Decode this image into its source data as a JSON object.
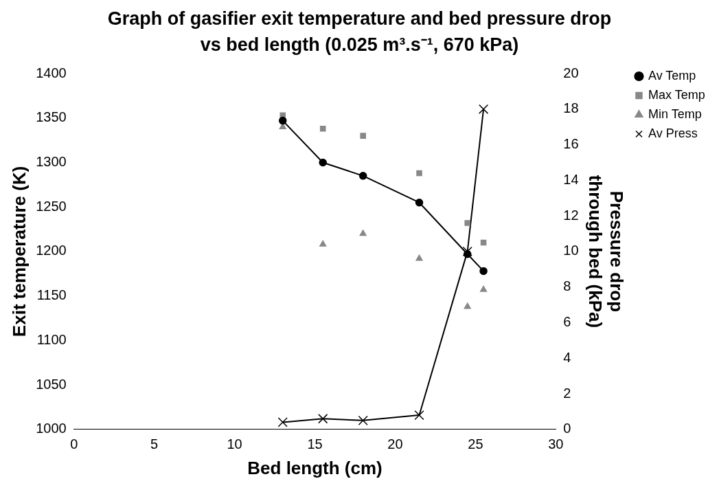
{
  "chart_data": {
    "type": "line",
    "title": "Graph of gasifier exit temperature and bed pressure drop vs bed length (0.025 m³.s⁻¹, 670 kPa)",
    "xlabel": "Bed length (cm)",
    "ylabel": "Exit temperature (K)",
    "y2label": "Pressure drop through bed (kPa)",
    "x": [
      13,
      15.5,
      18,
      21.5,
      24.5,
      25.5
    ],
    "series": [
      {
        "name": "Av Temp",
        "color": "#000000",
        "marker": "circle",
        "values": [
          1347,
          1300,
          1285,
          1255,
          1197,
          1178
        ]
      },
      {
        "name": "Max Temp",
        "type": "scatter",
        "color": "#888888",
        "marker": "square",
        "values": [
          1353,
          1338,
          1330,
          1288,
          1232,
          1210
        ]
      },
      {
        "name": "Min Temp",
        "type": "scatter",
        "color": "#888888",
        "marker": "triangle",
        "values": [
          1340,
          1208,
          1220,
          1192,
          1138,
          1157
        ]
      },
      {
        "name": "Av Press",
        "color": "#000000",
        "marker": "cross",
        "axis": "y2",
        "values": [
          0.4,
          0.6,
          0.5,
          0.8,
          10,
          18
        ]
      }
    ],
    "xlim": [
      0,
      30
    ],
    "xticks": [
      0,
      5,
      10,
      15,
      20,
      25,
      30
    ],
    "ylim": [
      1000,
      1400
    ],
    "yticks": [
      1000,
      1050,
      1100,
      1150,
      1200,
      1250,
      1300,
      1350,
      1400
    ],
    "y2lim": [
      0,
      20
    ],
    "y2ticks": [
      0,
      2,
      4,
      6,
      8,
      10,
      12,
      14,
      16,
      18,
      20
    ],
    "grid": false,
    "legend": "top right"
  }
}
